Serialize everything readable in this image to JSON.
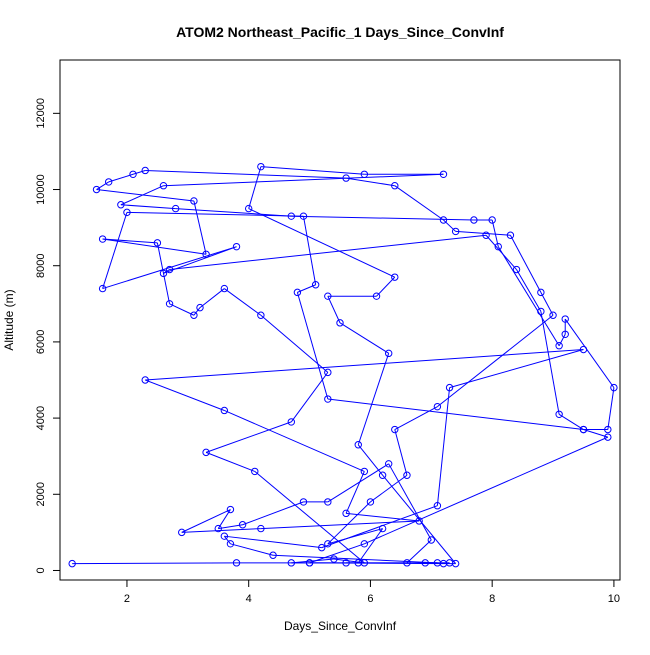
{
  "chart_data": {
    "type": "scatter",
    "title": "ATOM2 Northeast_Pacific_1 Days_Since_ConvInf",
    "xlabel": "Days_Since_ConvInf",
    "ylabel": "Altitude (m)",
    "xlim": [
      0.9,
      10.1
    ],
    "ylim": [
      -250,
      13400
    ],
    "xticks": [
      2,
      4,
      6,
      8,
      10
    ],
    "yticks": [
      0,
      2000,
      4000,
      6000,
      8000,
      10000,
      12000
    ],
    "grid": false,
    "legend": "none",
    "series": [
      {
        "marker": "open-circle",
        "connected": true,
        "points": [
          [
            1.1,
            180
          ],
          [
            3.8,
            200
          ],
          [
            5.0,
            200
          ],
          [
            7.2,
            180
          ],
          [
            7.4,
            180
          ],
          [
            6.2,
            2500
          ],
          [
            5.8,
            3300
          ],
          [
            6.3,
            5700
          ],
          [
            5.5,
            6500
          ],
          [
            5.3,
            7200
          ],
          [
            6.1,
            7200
          ],
          [
            6.4,
            7700
          ],
          [
            4.0,
            9500
          ],
          [
            4.2,
            10600
          ],
          [
            5.9,
            10400
          ],
          [
            7.2,
            10400
          ],
          [
            2.6,
            10100
          ],
          [
            1.9,
            9600
          ],
          [
            2.8,
            9500
          ],
          [
            4.7,
            9300
          ],
          [
            7.7,
            9200
          ],
          [
            8.0,
            9200
          ],
          [
            8.1,
            8500
          ],
          [
            9.1,
            5900
          ],
          [
            9.2,
            6200
          ],
          [
            9.2,
            6600
          ],
          [
            10.0,
            4800
          ],
          [
            9.9,
            3700
          ],
          [
            9.5,
            3700
          ],
          [
            5.3,
            4500
          ],
          [
            4.8,
            7300
          ],
          [
            5.1,
            7500
          ],
          [
            4.9,
            9300
          ],
          [
            2.0,
            9400
          ],
          [
            1.6,
            7400
          ],
          [
            3.8,
            8500
          ],
          [
            2.6,
            7800
          ],
          [
            2.7,
            7900
          ],
          [
            7.9,
            8800
          ],
          [
            8.4,
            7900
          ],
          [
            8.8,
            6800
          ],
          [
            9.1,
            4100
          ],
          [
            9.5,
            3700
          ],
          [
            9.9,
            3500
          ],
          [
            5.9,
            700
          ],
          [
            5.0,
            200
          ],
          [
            6.6,
            200
          ],
          [
            7.0,
            800
          ],
          [
            6.3,
            2800
          ],
          [
            5.3,
            1800
          ],
          [
            4.9,
            1800
          ],
          [
            3.9,
            1200
          ],
          [
            3.5,
            1100
          ],
          [
            3.7,
            1600
          ],
          [
            2.9,
            1000
          ],
          [
            4.2,
            1100
          ],
          [
            6.8,
            1300
          ],
          [
            5.6,
            1500
          ],
          [
            5.9,
            2600
          ],
          [
            3.6,
            4200
          ],
          [
            2.3,
            5000
          ],
          [
            9.5,
            5800
          ],
          [
            7.3,
            4800
          ],
          [
            7.1,
            1700
          ],
          [
            5.2,
            600
          ],
          [
            3.6,
            900
          ],
          [
            3.7,
            700
          ],
          [
            4.4,
            400
          ],
          [
            7.1,
            200
          ],
          [
            6.9,
            200
          ],
          [
            7.3,
            200
          ],
          [
            4.7,
            200
          ],
          [
            5.4,
            300
          ],
          [
            5.9,
            200
          ],
          [
            4.1,
            2600
          ],
          [
            3.3,
            3100
          ],
          [
            4.7,
            3900
          ],
          [
            5.3,
            5200
          ],
          [
            4.2,
            6700
          ],
          [
            3.6,
            7400
          ],
          [
            3.2,
            6900
          ],
          [
            3.1,
            6700
          ],
          [
            2.7,
            7000
          ],
          [
            2.5,
            8600
          ],
          [
            1.6,
            8700
          ],
          [
            3.3,
            8300
          ],
          [
            3.1,
            9700
          ],
          [
            1.5,
            10000
          ],
          [
            1.7,
            10200
          ],
          [
            2.1,
            10400
          ],
          [
            2.3,
            10500
          ],
          [
            5.6,
            10300
          ],
          [
            6.4,
            10100
          ],
          [
            7.2,
            9200
          ],
          [
            7.4,
            8900
          ],
          [
            8.3,
            8800
          ],
          [
            8.8,
            7300
          ],
          [
            9.0,
            6700
          ],
          [
            7.1,
            4300
          ],
          [
            6.4,
            3700
          ],
          [
            6.6,
            2500
          ],
          [
            6.0,
            1800
          ],
          [
            5.3,
            700
          ],
          [
            6.2,
            1100
          ],
          [
            5.8,
            200
          ],
          [
            5.6,
            200
          ]
        ]
      }
    ],
    "color": "#0000ff"
  }
}
